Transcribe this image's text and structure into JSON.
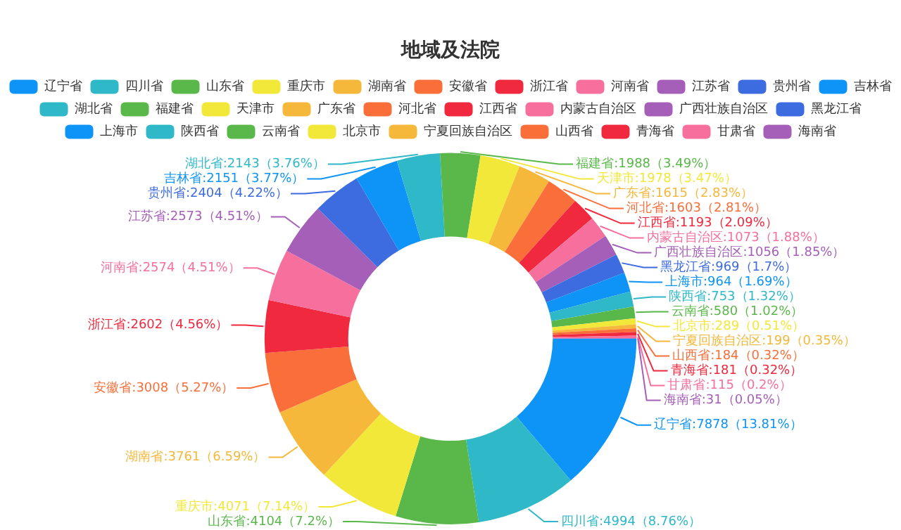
{
  "chart_data": {
    "type": "donut",
    "title": "地域及法院",
    "legend": "top",
    "categories": [
      "辽宁省",
      "四川省",
      "山东省",
      "重庆市",
      "湖南省",
      "安徽省",
      "浙江省",
      "河南省",
      "江苏省",
      "贵州省",
      "吉林省",
      "湖北省",
      "福建省",
      "天津市",
      "广东省",
      "河北省",
      "江西省",
      "内蒙古自治区",
      "广西壮族自治区",
      "黑龙江省",
      "上海市",
      "陕西省",
      "云南省",
      "北京市",
      "宁夏回族自治区",
      "山西省",
      "青海省",
      "甘肃省",
      "海南省"
    ],
    "values": [
      7878,
      4994,
      4104,
      4071,
      3761,
      3008,
      2602,
      2574,
      2573,
      2404,
      2151,
      2143,
      1988,
      1978,
      1615,
      1603,
      1193,
      1073,
      1056,
      969,
      964,
      753,
      580,
      289,
      199,
      184,
      181,
      115,
      31
    ],
    "colors": [
      "#0e94f7",
      "#2fb8c8",
      "#5ab84a",
      "#f2e83a",
      "#f5b83a",
      "#fa6e3a",
      "#f0293e",
      "#f76f9c",
      "#a55fb8",
      "#3d6be0",
      "#0e94f7",
      "#2fb8c8",
      "#5ab84a",
      "#f2e83a",
      "#f5b83a",
      "#fa6e3a",
      "#f0293e",
      "#f76f9c",
      "#a55fb8",
      "#3d6be0",
      "#0e94f7",
      "#2fb8c8",
      "#5ab84a",
      "#f2e83a",
      "#f5b83a",
      "#fa6e3a",
      "#f0293e",
      "#f76f9c",
      "#a55fb8"
    ],
    "value_labels": [
      "辽宁省:7878（13.81%）",
      "四川省:4994（8.76%）",
      "山东省:4104（7.2%）",
      "重庆市:4071（7.14%）",
      "湖南省:3761（6.59%）",
      "安徽省:3008（5.27%）",
      "浙江省:2602（4.56%）",
      "河南省:2574（4.51%）",
      "江苏省:2573（4.51%）",
      "贵州省:2404（4.22%）",
      "吉林省:2151（3.77%）",
      "湖北省:2143（3.76%）",
      "福建省:1988（3.49%）",
      "天津市:1978（3.47%）",
      "广东省:1615（2.83%）",
      "河北省:1603（2.81%）",
      "江西省:1193（2.09%）",
      "内蒙古自治区:1073（1.88%）",
      "广西壮族自治区:1056（1.85%）",
      "黑龙江省:969（1.7%）",
      "上海市:964（1.69%）",
      "陕西省:753（1.32%）",
      "云南省:580（1.02%）",
      "北京市:289（0.51%）",
      "宁夏回族自治区:199（0.35%）",
      "山西省:184（0.32%）",
      "青海省:181（0.32%）",
      "甘肃省:115（0.2%）",
      "海南省:31（0.05%）"
    ]
  }
}
